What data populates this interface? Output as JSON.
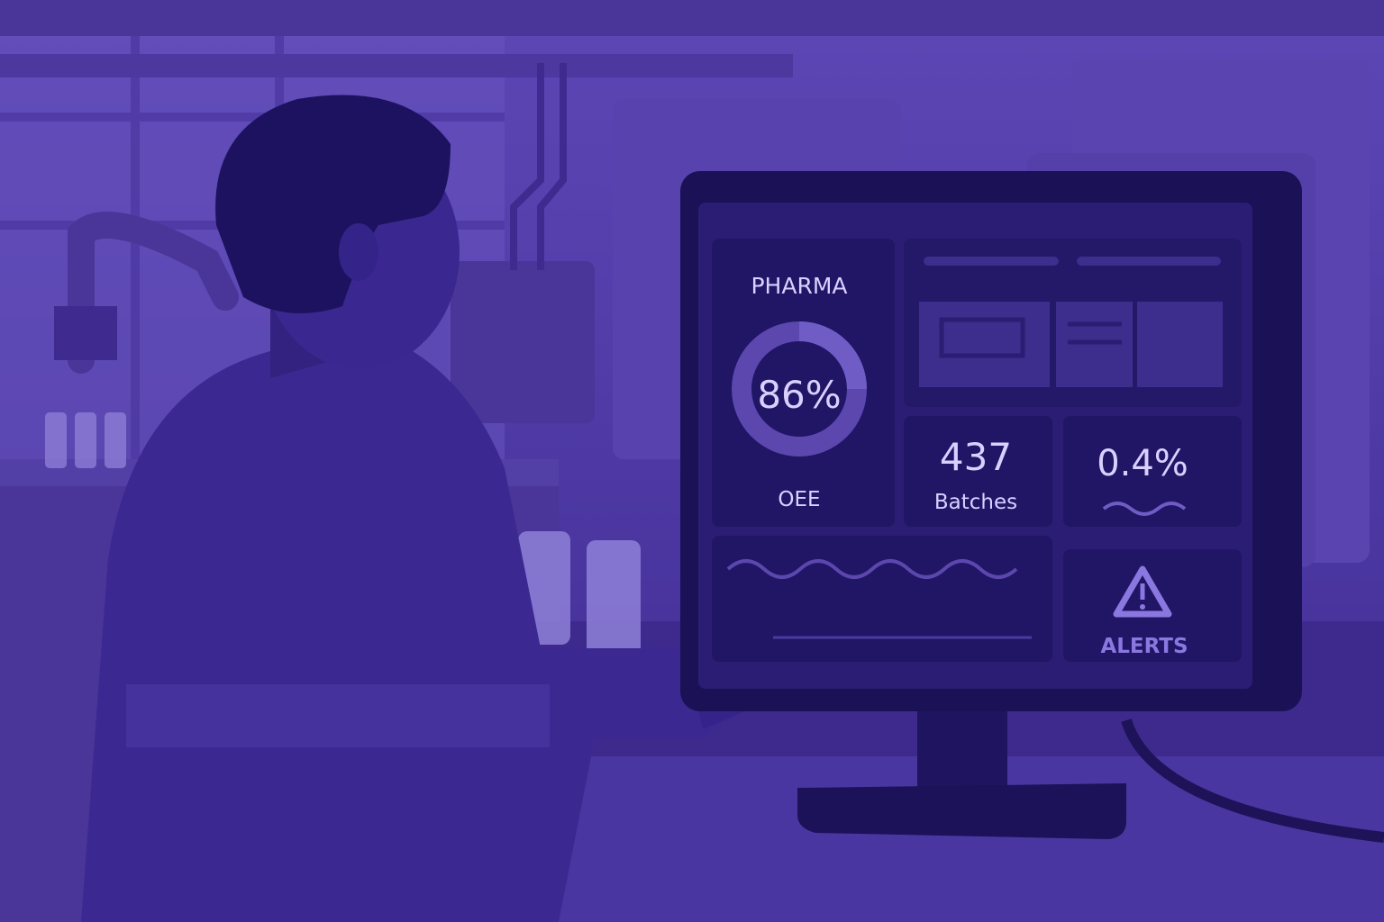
{
  "screen": {
    "title": "PHARMA",
    "oee": {
      "value": "86%",
      "label": "OEE"
    },
    "batches": {
      "value": "437",
      "label": "Batches"
    },
    "rate": {
      "value": "0.4%"
    },
    "alerts": {
      "label": "ALERTS"
    }
  }
}
